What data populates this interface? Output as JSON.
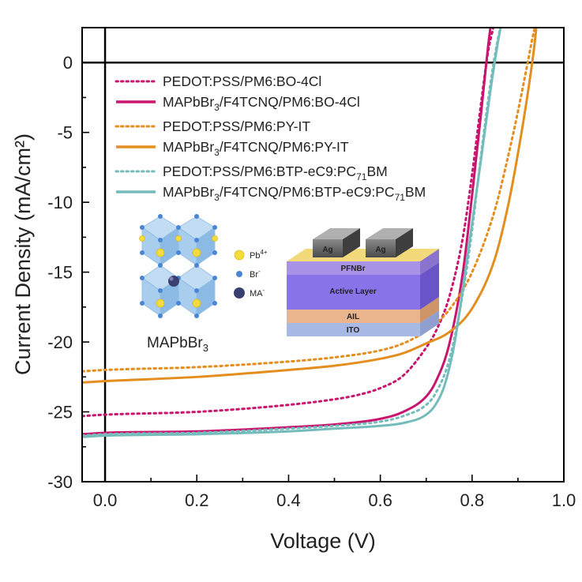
{
  "chart_data": {
    "type": "line",
    "xlabel": "Voltage (V)",
    "ylabel": "Current Density (mA/cm²)",
    "xlim": [
      -0.05,
      1.0
    ],
    "ylim": [
      -30,
      2.5
    ],
    "xticks": [
      "0.0",
      "0.2",
      "0.4",
      "0.6",
      "0.8",
      "1.0"
    ],
    "yticks": [
      "0",
      "-5",
      "-10",
      "-15",
      "-20",
      "-25",
      "-30"
    ],
    "legend_position": "upper-left",
    "series": [
      {
        "name": "PEDOT:PSS/PM6:BO-4Cl",
        "legend": {
          "main": "PEDOT:PSS/PM6:BO-4Cl"
        },
        "color": "#c8156e",
        "style": "dotted",
        "x": [
          -0.05,
          0.0,
          0.2,
          0.4,
          0.5,
          0.55,
          0.6,
          0.65,
          0.7,
          0.72,
          0.75,
          0.78,
          0.8,
          0.82,
          0.835,
          0.85
        ],
        "y": [
          -25.3,
          -25.2,
          -25.0,
          -24.5,
          -24.1,
          -23.8,
          -23.3,
          -22.4,
          -20.4,
          -19.3,
          -16.8,
          -12.5,
          -8.0,
          -2.8,
          0.8,
          3.0
        ]
      },
      {
        "name": "MAPbBr3/F4TCNQ/PM6:BO-4Cl",
        "legend": {
          "pre": "MAPbBr",
          "sub": "3",
          "post": "/F4TCNQ/PM6:BO-4Cl"
        },
        "color": "#c8156e",
        "style": "solid",
        "x": [
          -0.05,
          0.0,
          0.2,
          0.4,
          0.5,
          0.6,
          0.65,
          0.7,
          0.72,
          0.75,
          0.78,
          0.8,
          0.82,
          0.835,
          0.84
        ],
        "y": [
          -26.6,
          -26.5,
          -26.4,
          -26.1,
          -25.9,
          -25.5,
          -25.0,
          -23.9,
          -22.9,
          -20.2,
          -15.0,
          -9.5,
          -3.5,
          1.2,
          2.5
        ]
      },
      {
        "name": "PEDOT:PSS/PM6:PY-IT",
        "legend": {
          "main": "PEDOT:PSS/PM6:PY-IT"
        },
        "color": "#e38e1f",
        "style": "dotted",
        "x": [
          -0.05,
          0.0,
          0.2,
          0.4,
          0.5,
          0.6,
          0.65,
          0.7,
          0.75,
          0.8,
          0.85,
          0.88,
          0.9,
          0.92,
          0.93,
          0.94
        ],
        "y": [
          -22.1,
          -22.0,
          -21.8,
          -21.4,
          -21.1,
          -20.6,
          -20.1,
          -19.2,
          -17.7,
          -15.0,
          -10.5,
          -6.5,
          -3.5,
          -0.2,
          1.5,
          3.0
        ]
      },
      {
        "name": "MAPbBr3/F4TCNQ/PM6:PY-IT",
        "legend": {
          "pre": "MAPbBr",
          "sub": "3",
          "post": "/F4TCNQ/PM6:PY-IT"
        },
        "color": "#e38e1f",
        "style": "solid",
        "x": [
          -0.05,
          0.0,
          0.2,
          0.4,
          0.5,
          0.6,
          0.65,
          0.7,
          0.75,
          0.8,
          0.85,
          0.88,
          0.9,
          0.92,
          0.935,
          0.94
        ],
        "y": [
          -22.9,
          -22.8,
          -22.5,
          -22.0,
          -21.7,
          -21.2,
          -20.8,
          -20.1,
          -19.3,
          -17.6,
          -14.0,
          -10.0,
          -6.5,
          -2.5,
          1.0,
          2.5
        ]
      },
      {
        "name": "PEDOT:PSS/PM6:BTP-eC9:PC71BM",
        "legend": {
          "pre": "PEDOT:PSS/PM6:BTP-eC9:PC",
          "sub": "71",
          "post": "BM"
        },
        "color": "#74bcbc",
        "style": "dotted",
        "x": [
          -0.05,
          0.0,
          0.2,
          0.4,
          0.5,
          0.6,
          0.65,
          0.7,
          0.72,
          0.75,
          0.78,
          0.8,
          0.82,
          0.84,
          0.855,
          0.865
        ],
        "y": [
          -26.7,
          -26.6,
          -26.5,
          -26.2,
          -26.0,
          -25.7,
          -25.3,
          -24.5,
          -23.7,
          -21.3,
          -16.5,
          -12.0,
          -6.5,
          -1.5,
          1.5,
          3.0
        ]
      },
      {
        "name": "MAPbBr3/F4TCNQ/PM6:BTP-eC9:PC71BM",
        "legend": {
          "pre": "MAPbBr",
          "sub": "3",
          "post": "/F4TCNQ/PM6:BTP-eC9:PC",
          "sub2": "71",
          "post2": "BM"
        },
        "color": "#74bcbc",
        "style": "solid",
        "x": [
          -0.05,
          0.0,
          0.2,
          0.4,
          0.5,
          0.6,
          0.65,
          0.7,
          0.72,
          0.74,
          0.76,
          0.78,
          0.8,
          0.82,
          0.84,
          0.855,
          0.865
        ],
        "y": [
          -26.8,
          -26.7,
          -26.6,
          -26.4,
          -26.2,
          -26.0,
          -25.8,
          -25.2,
          -24.5,
          -23.1,
          -20.4,
          -16.2,
          -11.5,
          -6.8,
          -2.0,
          1.2,
          3.0
        ]
      }
    ]
  },
  "inset": {
    "legend": [
      {
        "label": "Pb",
        "sup": "4+",
        "color": "#f5dc3e"
      },
      {
        "label": "Br",
        "sup": "-",
        "color": "#4a86d4"
      },
      {
        "label": "MA",
        "sup": "-",
        "color": "#3a3f70"
      }
    ],
    "crystal_label": {
      "pre": "MAPbBr",
      "sub": "3"
    },
    "layers": {
      "electrode": "Ag",
      "pfnbr": "PFNBr",
      "active": "Active Layer",
      "ail": "AIL",
      "ito": "ITO"
    }
  }
}
